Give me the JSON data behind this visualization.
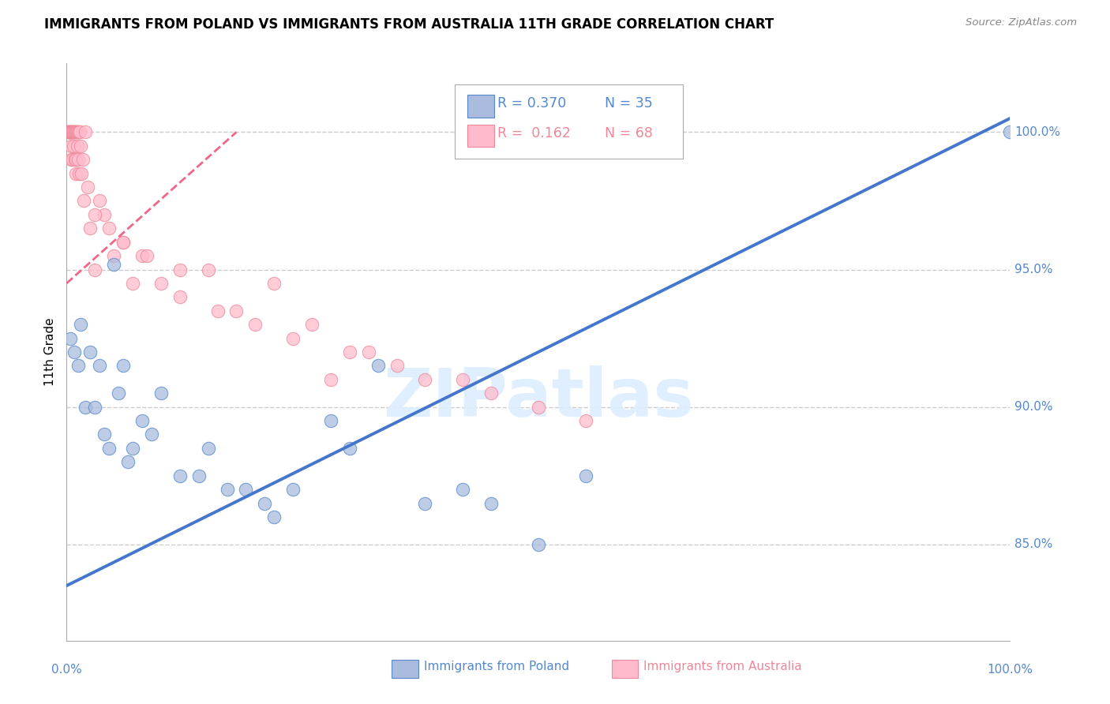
{
  "title": "IMMIGRANTS FROM POLAND VS IMMIGRANTS FROM AUSTRALIA 11TH GRADE CORRELATION CHART",
  "source": "Source: ZipAtlas.com",
  "ylabel": "11th Grade",
  "blue_R": "R = 0.370",
  "blue_N": "N = 35",
  "pink_R": "R =  0.162",
  "pink_N": "N = 68",
  "blue_fill": "#AABBDD",
  "blue_edge": "#5588CC",
  "pink_fill": "#FFBBCC",
  "pink_edge": "#EE8899",
  "trend_blue": "#4477CC",
  "trend_pink": "#EE6688",
  "label_color": "#5588CC",
  "pink_label_color": "#EE8899",
  "ytick_labels": [
    "85.0%",
    "90.0%",
    "95.0%",
    "100.0%"
  ],
  "ytick_vals": [
    85.0,
    90.0,
    95.0,
    100.0
  ],
  "ylim": [
    81.5,
    102.5
  ],
  "xlim": [
    0.0,
    100.0
  ],
  "grid_color": "#CCCCCC",
  "blue_pts_x": [
    0.4,
    0.8,
    1.5,
    2.5,
    3.5,
    4.0,
    5.0,
    5.5,
    6.0,
    7.0,
    8.0,
    10.0,
    12.0,
    15.0,
    17.0,
    19.0,
    21.0,
    24.0,
    28.0,
    33.0,
    38.0,
    45.0,
    50.0,
    55.0,
    100.0,
    1.2,
    2.0,
    3.0,
    4.5,
    6.5,
    9.0,
    14.0,
    22.0,
    30.0,
    42.0
  ],
  "blue_pts_y": [
    92.5,
    92.0,
    93.0,
    92.0,
    91.5,
    89.0,
    95.2,
    90.5,
    91.5,
    88.5,
    89.5,
    90.5,
    87.5,
    88.5,
    87.0,
    87.0,
    86.5,
    87.0,
    89.5,
    91.5,
    86.5,
    86.5,
    85.0,
    87.5,
    100.0,
    91.5,
    90.0,
    90.0,
    88.5,
    88.0,
    89.0,
    87.5,
    86.0,
    88.5,
    87.0
  ],
  "pink_pts_x": [
    0.1,
    0.15,
    0.2,
    0.25,
    0.3,
    0.35,
    0.4,
    0.45,
    0.5,
    0.5,
    0.5,
    0.55,
    0.6,
    0.6,
    0.65,
    0.7,
    0.75,
    0.8,
    0.85,
    0.9,
    0.95,
    1.0,
    1.0,
    1.05,
    1.1,
    1.15,
    1.2,
    1.25,
    1.3,
    1.35,
    1.4,
    1.5,
    1.6,
    1.7,
    1.8,
    2.0,
    2.2,
    2.5,
    3.0,
    3.5,
    4.0,
    5.0,
    6.0,
    7.0,
    8.0,
    10.0,
    12.0,
    15.0,
    18.0,
    22.0,
    26.0,
    30.0,
    35.0,
    42.0,
    50.0,
    3.0,
    4.5,
    6.0,
    8.5,
    12.0,
    16.0,
    20.0,
    24.0,
    28.0,
    32.0,
    38.0,
    45.0,
    55.0
  ],
  "pink_pts_y": [
    100.0,
    100.0,
    100.0,
    100.0,
    100.0,
    100.0,
    100.0,
    100.0,
    100.0,
    99.5,
    99.0,
    100.0,
    100.0,
    99.0,
    100.0,
    100.0,
    99.5,
    100.0,
    99.0,
    100.0,
    99.0,
    100.0,
    98.5,
    100.0,
    100.0,
    99.5,
    100.0,
    99.0,
    100.0,
    98.5,
    100.0,
    99.5,
    98.5,
    99.0,
    97.5,
    100.0,
    98.0,
    96.5,
    95.0,
    97.5,
    97.0,
    95.5,
    96.0,
    94.5,
    95.5,
    94.5,
    95.0,
    95.0,
    93.5,
    94.5,
    93.0,
    92.0,
    91.5,
    91.0,
    90.0,
    97.0,
    96.5,
    96.0,
    95.5,
    94.0,
    93.5,
    93.0,
    92.5,
    91.0,
    92.0,
    91.0,
    90.5,
    89.5
  ],
  "blue_trend_x": [
    0.0,
    100.0
  ],
  "blue_trend_y": [
    83.5,
    100.5
  ],
  "pink_trend_x": [
    0.0,
    18.0
  ],
  "pink_trend_y": [
    94.5,
    100.0
  ]
}
